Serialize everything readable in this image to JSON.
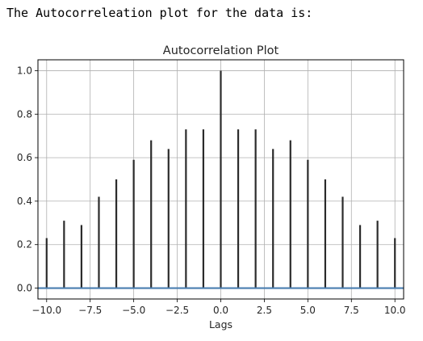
{
  "output_text": "The Autocorreleation plot for the data is:",
  "chart_data": {
    "type": "stem",
    "title": "Autocorrelation Plot",
    "xlabel": "Lags",
    "ylabel": "",
    "xlim": [
      -10.5,
      10.5
    ],
    "ylim": [
      -0.05,
      1.05
    ],
    "x_ticks": [
      -10.0,
      -7.5,
      -5.0,
      -2.5,
      0.0,
      2.5,
      5.0,
      7.5,
      10.0
    ],
    "x_tick_labels": [
      "−10.0",
      "−7.5",
      "−5.0",
      "−2.5",
      "0.0",
      "2.5",
      "5.0",
      "7.5",
      "10.0"
    ],
    "y_ticks": [
      0.0,
      0.2,
      0.4,
      0.6,
      0.8,
      1.0
    ],
    "y_tick_labels": [
      "0.0",
      "0.2",
      "0.4",
      "0.6",
      "0.8",
      "1.0"
    ],
    "grid": true,
    "baseline": 0,
    "lags": [
      -10,
      -9,
      -8,
      -7,
      -6,
      -5,
      -4,
      -3,
      -2,
      -1,
      0,
      1,
      2,
      3,
      4,
      5,
      6,
      7,
      8,
      9,
      10
    ],
    "values": [
      0.23,
      0.31,
      0.29,
      0.42,
      0.5,
      0.59,
      0.68,
      0.64,
      0.73,
      0.73,
      1.0,
      0.73,
      0.73,
      0.64,
      0.68,
      0.59,
      0.5,
      0.42,
      0.29,
      0.31,
      0.23
    ],
    "colors": {
      "stem": "#2b2b2b",
      "baseline": "#4a7eb0",
      "grid": "#b0b0b0",
      "axes": "#000000"
    }
  }
}
